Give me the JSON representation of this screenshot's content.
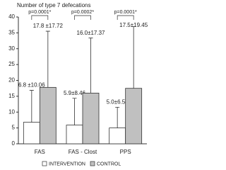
{
  "chart_data": {
    "type": "bar",
    "y_label": "Number of type 7 defecations",
    "categories": [
      "FAS",
      "FAS - Clost",
      "PPS"
    ],
    "series": [
      {
        "name": "INTERVENTION",
        "color": "#ffffff",
        "values": [
          6.8,
          5.9,
          5.0
        ],
        "errors": [
          10.06,
          8.46,
          6.54
        ],
        "value_labels": [
          "6.8 ±10.06",
          "5.9±8.46",
          "5.0±6.54"
        ]
      },
      {
        "name": "CONTROL",
        "color": "#c0c0c0",
        "values": [
          17.8,
          16.0,
          17.5
        ],
        "errors": [
          17.72,
          17.37,
          19.45
        ],
        "value_labels": [
          "17.8 ±17.72",
          "16.0±17.37",
          "17.5±19.45"
        ]
      }
    ],
    "annotations": [
      "p=0.0001*",
      "p=0.0002*",
      "p=0.0001*"
    ],
    "ylim": [
      0,
      40
    ],
    "yticks": [
      0,
      5,
      10,
      15,
      20,
      25,
      30,
      35,
      40
    ]
  }
}
